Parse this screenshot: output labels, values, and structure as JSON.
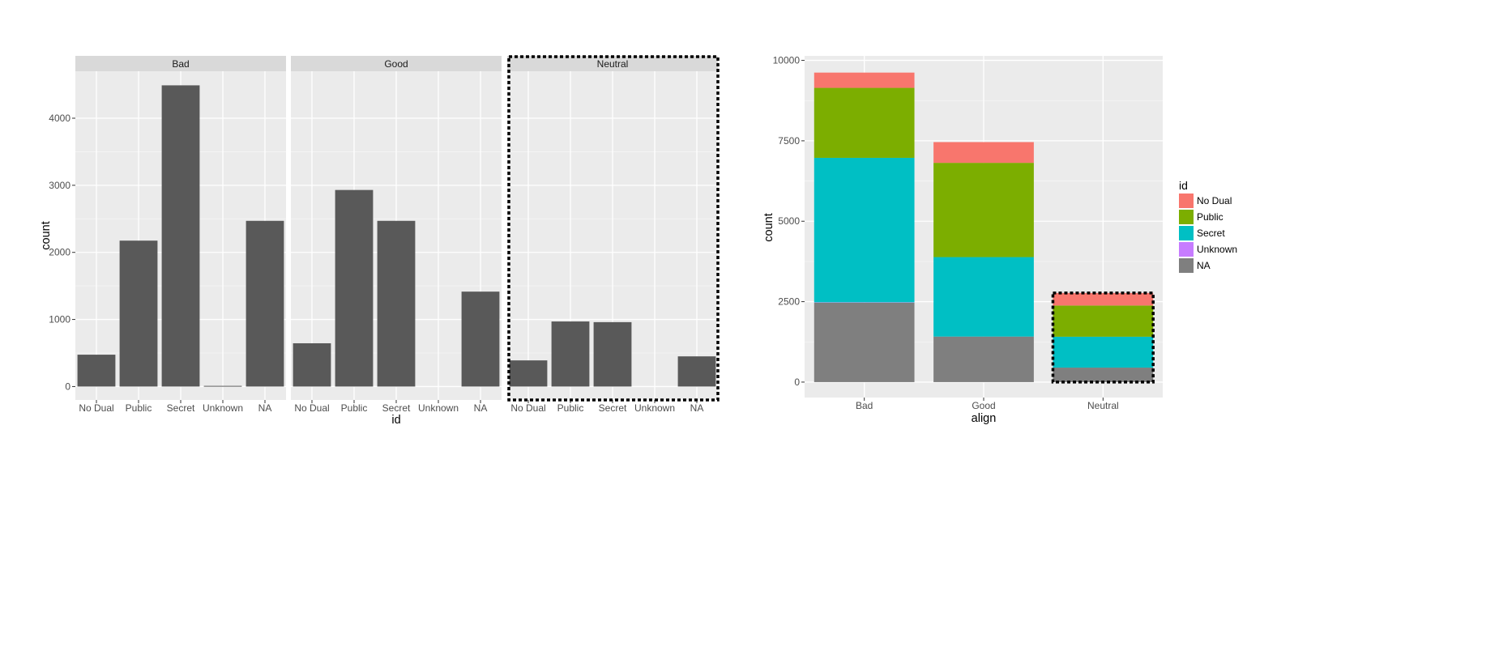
{
  "chart_data": [
    {
      "type": "bar",
      "faceted_by": "align",
      "panels": [
        "Bad",
        "Good",
        "Neutral"
      ],
      "categories": [
        "No Dual",
        "Public",
        "Secret",
        "Unknown",
        "NA"
      ],
      "series": [
        {
          "panel": "Bad",
          "values": [
            475,
            2175,
            4490,
            10,
            2470
          ]
        },
        {
          "panel": "Good",
          "values": [
            645,
            2930,
            2470,
            0,
            1415
          ]
        },
        {
          "panel": "Neutral",
          "values": [
            390,
            970,
            960,
            0,
            450
          ]
        }
      ],
      "xlabel": "id",
      "ylabel": "count",
      "ylim": [
        -200,
        4700
      ],
      "yticks": [
        0,
        1000,
        2000,
        3000,
        4000
      ],
      "bar_color": "#595959",
      "highlight": "Neutral"
    },
    {
      "type": "bar",
      "stacked": true,
      "categories": [
        "Bad",
        "Good",
        "Neutral"
      ],
      "series": [
        {
          "name": "No Dual",
          "values": [
            475,
            645,
            390
          ],
          "color": "#F8766D"
        },
        {
          "name": "Public",
          "values": [
            2175,
            2930,
            970
          ],
          "color": "#7CAE00"
        },
        {
          "name": "Secret",
          "values": [
            4490,
            2470,
            960
          ],
          "color": "#00BFC4"
        },
        {
          "name": "Unknown",
          "values": [
            10,
            0,
            0
          ],
          "color": "#C77CFF"
        },
        {
          "name": "NA",
          "values": [
            2470,
            1415,
            450
          ],
          "color": "#7F7F7F"
        }
      ],
      "xlabel": "align",
      "ylabel": "count",
      "ylim": [
        -480,
        10140
      ],
      "yticks": [
        0,
        2500,
        5000,
        7500,
        10000
      ],
      "legend_title": "id",
      "legend_position": "right",
      "highlight": "Neutral"
    }
  ]
}
